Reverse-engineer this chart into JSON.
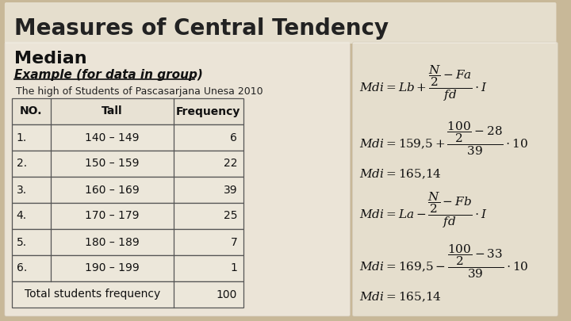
{
  "title": "Measures of Central Tendency",
  "subtitle": "Median",
  "example_label": "Example (for data in group)",
  "description": "The high of Students of Pascasarjana Unesa 2010",
  "table_headers": [
    "NO.",
    "Tall",
    "Frequency"
  ],
  "table_rows": [
    [
      "1.",
      "140 – 149",
      "6"
    ],
    [
      "2.",
      "150 – 159",
      "22"
    ],
    [
      "3.",
      "160 – 169",
      "39"
    ],
    [
      "4.",
      "170 – 179",
      "25"
    ],
    [
      "5.",
      "180 – 189",
      "7"
    ],
    [
      "6.",
      "190 – 199",
      "1"
    ]
  ],
  "table_footer": [
    "Total students frequency",
    "100"
  ],
  "bg_color": "#c8b898",
  "panel_bg": "#f0ebe0"
}
